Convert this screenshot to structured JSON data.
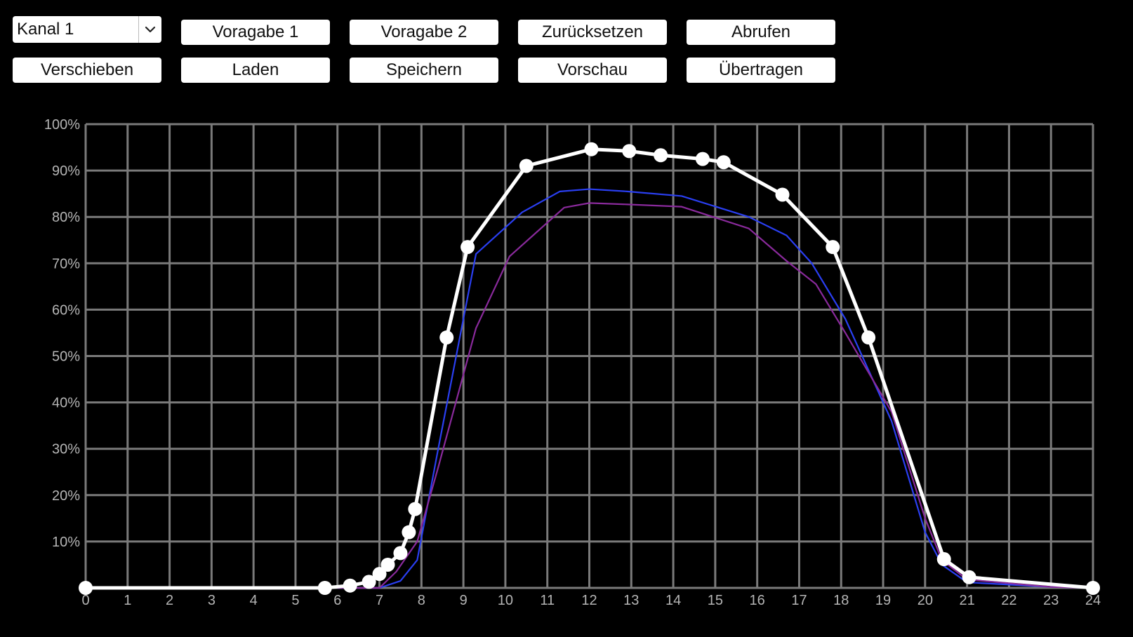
{
  "toolbar": {
    "channel_select": {
      "value": "Kanal 1",
      "icon": "chevron-down-icon"
    },
    "row1": [
      "Voragabe 1",
      "Voragabe 2",
      "Zurücksetzen",
      "Abrufen"
    ],
    "row2": [
      "Verschieben",
      "Laden",
      "Speichern",
      "Vorschau",
      "Übertragen"
    ]
  },
  "colors": {
    "background": "#000000",
    "grid": "#7a7a7a",
    "main_curve": "#ffffff",
    "blue_curve": "#2a3ff2",
    "purple_curve": "#8a2a9c",
    "button_bg": "#ffffff"
  },
  "chart_data": {
    "type": "line",
    "xlim": [
      0,
      24
    ],
    "ylim": [
      0,
      100
    ],
    "x_ticks": [
      "0",
      "1",
      "2",
      "3",
      "4",
      "5",
      "6",
      "7",
      "8",
      "9",
      "10",
      "11",
      "12",
      "13",
      "14",
      "15",
      "16",
      "17",
      "18",
      "19",
      "20",
      "21",
      "22",
      "23",
      "24"
    ],
    "y_ticks": [
      "10%",
      "20%",
      "30%",
      "40%",
      "50%",
      "60%",
      "70%",
      "80%",
      "90%",
      "100%"
    ],
    "grid": true,
    "series": [
      {
        "color": "#2a3ff2",
        "points": [
          [
            6,
            0
          ],
          [
            7,
            0
          ],
          [
            7.5,
            1.5
          ],
          [
            7.9,
            6
          ],
          [
            8.4,
            30
          ],
          [
            9.3,
            72
          ],
          [
            10.4,
            81
          ],
          [
            11.3,
            85.5
          ],
          [
            12,
            86
          ],
          [
            12.9,
            85.5
          ],
          [
            14.2,
            84.5
          ],
          [
            15.8,
            80
          ],
          [
            16.7,
            76
          ],
          [
            17.3,
            70
          ],
          [
            18.1,
            58
          ],
          [
            19.2,
            36
          ],
          [
            20,
            12
          ],
          [
            20.4,
            5
          ],
          [
            21,
            1.2
          ],
          [
            23,
            0.2
          ],
          [
            24,
            0
          ]
        ]
      },
      {
        "color": "#8a2a9c",
        "points": [
          [
            6,
            0
          ],
          [
            7,
            0
          ],
          [
            7.4,
            3.5
          ],
          [
            7.9,
            10
          ],
          [
            8.4,
            26
          ],
          [
            9.3,
            56
          ],
          [
            10.1,
            71.5
          ],
          [
            11.4,
            82
          ],
          [
            12,
            83
          ],
          [
            12.9,
            82.7
          ],
          [
            14.2,
            82.2
          ],
          [
            15.8,
            77.5
          ],
          [
            16.7,
            70.5
          ],
          [
            17.4,
            65.5
          ],
          [
            18.1,
            55
          ],
          [
            19.2,
            38
          ],
          [
            20,
            15
          ],
          [
            20.4,
            6
          ],
          [
            21,
            1.8
          ],
          [
            23,
            0.2
          ],
          [
            24,
            0
          ]
        ]
      },
      {
        "color": "#ffffff",
        "points": [
          [
            0,
            0
          ],
          [
            5.7,
            0
          ],
          [
            6.3,
            0.5
          ],
          [
            6.75,
            1.3
          ],
          [
            7.0,
            3
          ],
          [
            7.2,
            5
          ],
          [
            7.5,
            7.5
          ],
          [
            7.7,
            12
          ],
          [
            7.85,
            17
          ],
          [
            8.6,
            54
          ],
          [
            9.1,
            73.5
          ],
          [
            10.5,
            91
          ],
          [
            12.05,
            94.6
          ],
          [
            12.95,
            94.2
          ],
          [
            13.7,
            93.3
          ],
          [
            14.7,
            92.5
          ],
          [
            15.2,
            91.8
          ],
          [
            16.6,
            84.8
          ],
          [
            17.8,
            73.5
          ],
          [
            18.65,
            54
          ],
          [
            20.45,
            6.2
          ],
          [
            21.05,
            2.3
          ],
          [
            24,
            0
          ]
        ]
      }
    ]
  }
}
